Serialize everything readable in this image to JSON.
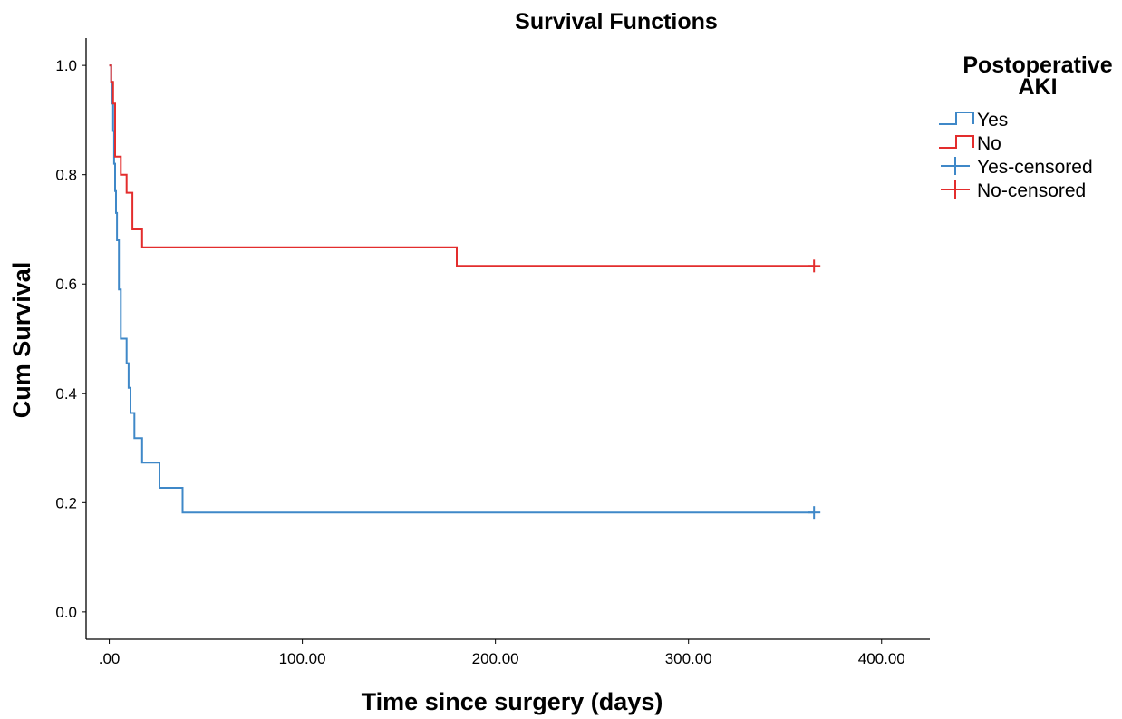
{
  "chart_data": {
    "type": "line",
    "title": "Survival Functions",
    "xlabel": "Time since surgery (days)",
    "ylabel": "Cum Survival",
    "xlim": [
      -12,
      425
    ],
    "ylim": [
      -0.05,
      1.05
    ],
    "x_ticks": [
      0,
      100,
      200,
      300,
      400
    ],
    "x_tick_labels": [
      ".00",
      "100.00",
      "200.00",
      "300.00",
      "400.00"
    ],
    "y_ticks": [
      0,
      0.2,
      0.4,
      0.6,
      0.8,
      1.0
    ],
    "y_tick_labels": [
      "0.0",
      "0.2",
      "0.4",
      "0.6",
      "0.8",
      "1.0"
    ],
    "grid": false,
    "step": true,
    "legend": {
      "title": "Postoperative AKI",
      "placement": "right",
      "entries": [
        {
          "label": "Yes",
          "series": "Yes",
          "symbol": "step"
        },
        {
          "label": "No",
          "series": "No",
          "symbol": "step"
        },
        {
          "label": "Yes-censored",
          "series": "Yes",
          "symbol": "cross"
        },
        {
          "label": "No-censored",
          "series": "No",
          "symbol": "cross"
        }
      ]
    },
    "series": [
      {
        "name": "Yes",
        "color": "#3f88c8",
        "x": [
          0,
          1,
          1.5,
          2,
          2.5,
          3,
          3.5,
          4,
          5,
          6,
          7,
          9,
          10,
          11,
          13,
          17,
          26,
          38,
          365
        ],
        "y": [
          1.0,
          0.97,
          0.93,
          0.88,
          0.82,
          0.77,
          0.73,
          0.68,
          0.59,
          0.5,
          0.5,
          0.455,
          0.41,
          0.364,
          0.318,
          0.273,
          0.227,
          0.182,
          0.182
        ],
        "censored": [
          {
            "x": 365,
            "y": 0.182
          }
        ]
      },
      {
        "name": "No",
        "color": "#e32d2d",
        "x": [
          0,
          1,
          2,
          3,
          6,
          9,
          12,
          17,
          180,
          365
        ],
        "y": [
          1.0,
          0.97,
          0.93,
          0.833,
          0.8,
          0.767,
          0.7,
          0.667,
          0.633,
          0.633
        ],
        "censored": [
          {
            "x": 365,
            "y": 0.633
          }
        ]
      }
    ]
  }
}
